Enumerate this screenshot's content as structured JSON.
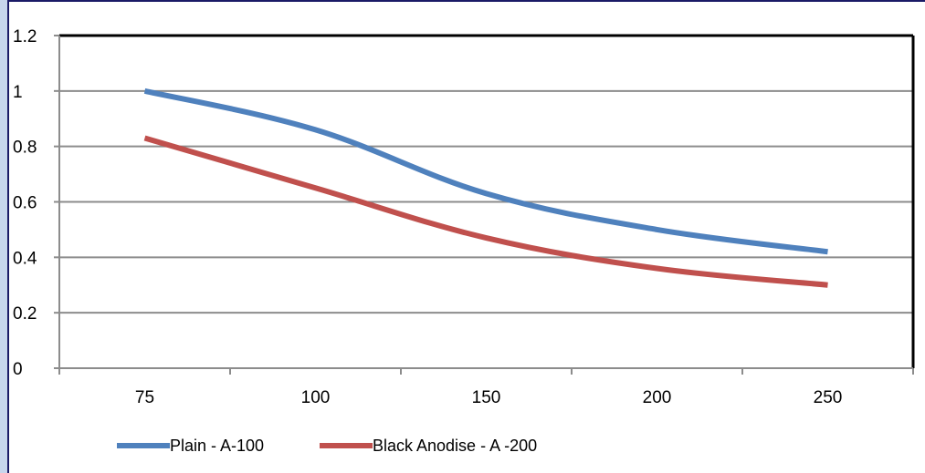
{
  "chart_data": {
    "type": "line",
    "title": "",
    "xlabel": "",
    "ylabel": "",
    "categories": [
      "75",
      "100",
      "150",
      "200",
      "250"
    ],
    "ylim": [
      0,
      1.2
    ],
    "yticks": [
      "0",
      "0.2",
      "0.4",
      "0.6",
      "0.8",
      "1",
      "1.2"
    ],
    "grid": true,
    "legend": "bottom-left",
    "series": [
      {
        "name": "Plain - A-100",
        "color": "#4f81bd",
        "values": [
          1.0,
          0.86,
          0.63,
          0.5,
          0.42
        ]
      },
      {
        "name": "Black Anodise - A -200",
        "color": "#c0504d",
        "values": [
          0.83,
          0.65,
          0.47,
          0.36,
          0.3
        ]
      }
    ]
  }
}
